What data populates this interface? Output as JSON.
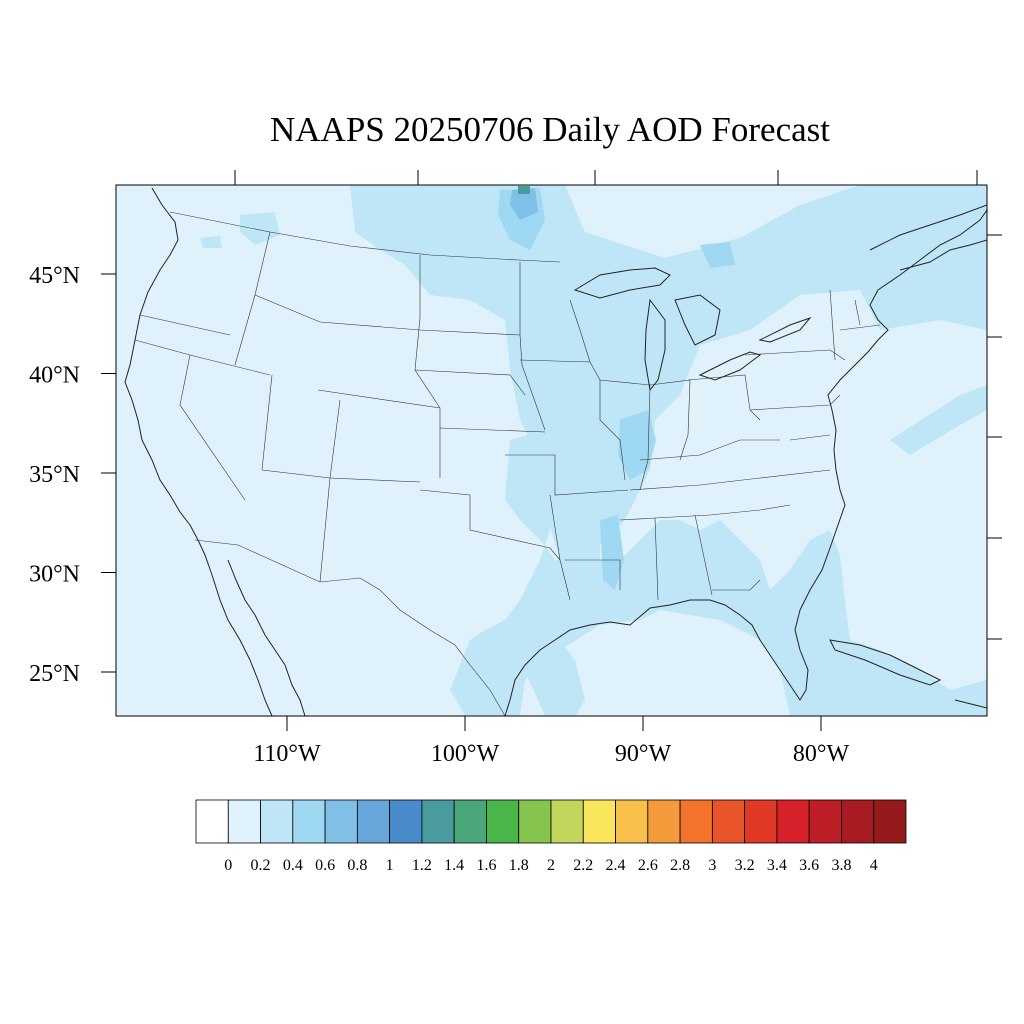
{
  "title": "NAAPS 20250706 Daily AOD Forecast",
  "map": {
    "lat_range": [
      22.5,
      49.2
    ],
    "lon_range": [
      -119.0,
      -70.3
    ],
    "lat_labels": [
      {
        "value": 45,
        "text": "45°N"
      },
      {
        "value": 40,
        "text": "40°N"
      },
      {
        "value": 35,
        "text": "35°N"
      },
      {
        "value": 30,
        "text": "30°N"
      },
      {
        "value": 25,
        "text": "25°N"
      }
    ],
    "lon_labels": [
      {
        "value": -110,
        "text": "110°W"
      },
      {
        "value": -100,
        "text": "100°W"
      },
      {
        "value": -90,
        "text": "90°W"
      },
      {
        "value": -80,
        "text": "80°W"
      }
    ],
    "background_aod": "0-0.2",
    "highest_aod": "1.2-1.4 near Lake of the Woods"
  },
  "colorbar": {
    "labels": [
      "0",
      "0.2",
      "0.4",
      "0.6",
      "0.8",
      "1",
      "1.2",
      "1.4",
      "1.6",
      "1.8",
      "2",
      "2.2",
      "2.4",
      "2.6",
      "2.8",
      "3",
      "3.2",
      "3.4",
      "3.6",
      "3.8",
      "4"
    ],
    "colors": [
      "#ffffff",
      "#dff2fb",
      "#bfe6f7",
      "#9fd8f3",
      "#80c0e6",
      "#66a6db",
      "#4a8ccb",
      "#4a9b9e",
      "#49a77a",
      "#4ab649",
      "#85c44f",
      "#c3d55b",
      "#f9e65c",
      "#f8c04b",
      "#f59a3b",
      "#f3722c",
      "#e9542b",
      "#e03a26",
      "#d7212a",
      "#be1e25",
      "#a81c21",
      "#941a1c"
    ]
  }
}
